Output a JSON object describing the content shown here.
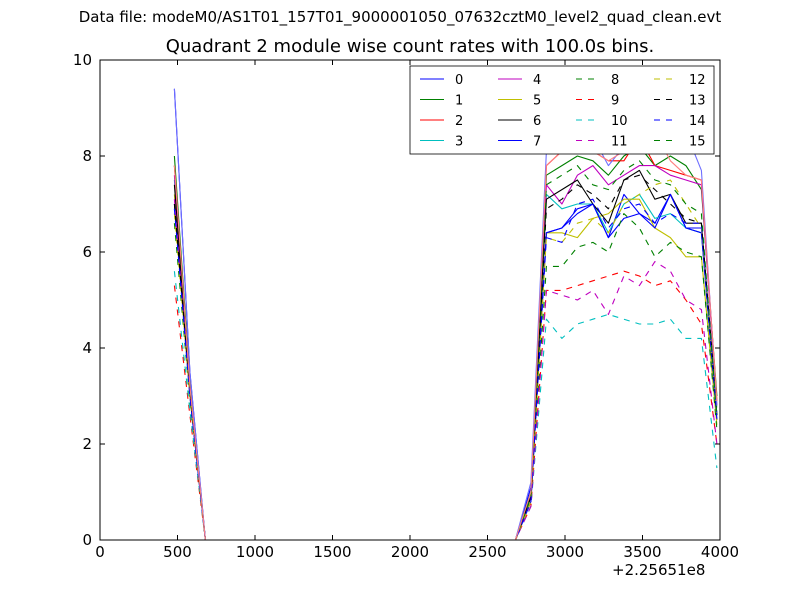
{
  "suptitle": "Data file: modeM0/AS1T01_157T01_9000001050_07632cztM0_level2_quad_clean.evt",
  "chart_data": {
    "type": "line",
    "title": "Quadrant 2 module wise count rates with 100.0s bins.",
    "xlabel": "",
    "ylabel": "",
    "x_offset_label": "+2.25651e8",
    "xlim": [
      0,
      4000
    ],
    "ylim": [
      0,
      10
    ],
    "xticks": [
      0,
      500,
      1000,
      1500,
      2000,
      2500,
      3000,
      3500,
      4000
    ],
    "yticks": [
      0,
      2,
      4,
      6,
      8,
      10
    ],
    "grid": false,
    "legend_position": "top-right",
    "legend_columns": 4,
    "x": [
      480,
      580,
      680,
      780,
      880,
      980,
      1080,
      1180,
      1280,
      1380,
      1480,
      1580,
      1680,
      1780,
      1880,
      1980,
      2080,
      2180,
      2280,
      2380,
      2480,
      2580,
      2680,
      2780,
      2880,
      2980,
      3080,
      3180,
      3280,
      3380,
      3480,
      3580,
      3680,
      3780,
      3880,
      3980
    ],
    "series": [
      {
        "name": "0",
        "color": "#0000ff",
        "dash": "solid",
        "values": [
          9.4,
          3.5,
          0,
          0,
          0,
          0,
          0,
          0,
          0,
          0,
          0,
          0,
          0,
          0,
          0,
          0,
          0,
          0,
          0,
          0,
          0,
          0,
          0,
          1.1,
          6.4,
          6.5,
          6.8,
          7.0,
          6.3,
          7.2,
          6.8,
          6.6,
          7.2,
          6.5,
          6.5,
          2.5
        ]
      },
      {
        "name": "1",
        "color": "#008000",
        "dash": "solid",
        "values": [
          8.0,
          3.3,
          0,
          0,
          0,
          0,
          0,
          0,
          0,
          0,
          0,
          0,
          0,
          0,
          0,
          0,
          0,
          0,
          0,
          0,
          0,
          0,
          0,
          1.0,
          7.6,
          7.8,
          8.0,
          7.9,
          7.6,
          8.0,
          8.2,
          7.8,
          8.0,
          7.8,
          7.3,
          3.0
        ]
      },
      {
        "name": "2",
        "color": "#ff0000",
        "dash": "solid",
        "values": [
          7.8,
          3.2,
          0,
          0,
          0,
          0,
          0,
          0,
          0,
          0,
          0,
          0,
          0,
          0,
          0,
          0,
          0,
          0,
          0,
          0,
          0,
          0,
          0,
          0.9,
          7.8,
          8.1,
          8.2,
          8.1,
          7.9,
          7.9,
          8.4,
          7.8,
          7.7,
          7.6,
          7.5,
          2.9
        ]
      },
      {
        "name": "3",
        "color": "#00bfbf",
        "dash": "solid",
        "values": [
          7.5,
          3.1,
          0,
          0,
          0,
          0,
          0,
          0,
          0,
          0,
          0,
          0,
          0,
          0,
          0,
          0,
          0,
          0,
          0,
          0,
          0,
          0,
          0,
          0.9,
          7.2,
          6.9,
          7.0,
          7.0,
          6.4,
          7.0,
          7.2,
          6.7,
          6.8,
          6.5,
          6.4,
          2.6
        ]
      },
      {
        "name": "4",
        "color": "#bf00bf",
        "dash": "solid",
        "values": [
          7.6,
          3.2,
          0,
          0,
          0,
          0,
          0,
          0,
          0,
          0,
          0,
          0,
          0,
          0,
          0,
          0,
          0,
          0,
          0,
          0,
          0,
          0,
          0,
          0.9,
          7.4,
          7.0,
          7.6,
          7.8,
          7.4,
          7.6,
          7.8,
          7.8,
          7.6,
          7.5,
          7.4,
          2.8
        ]
      },
      {
        "name": "5",
        "color": "#bfbf00",
        "dash": "solid",
        "values": [
          7.2,
          3.0,
          0,
          0,
          0,
          0,
          0,
          0,
          0,
          0,
          0,
          0,
          0,
          0,
          0,
          0,
          0,
          0,
          0,
          0,
          0,
          0,
          0,
          0.8,
          6.4,
          6.4,
          6.3,
          6.7,
          6.8,
          7.1,
          7.1,
          6.5,
          6.3,
          5.9,
          5.9,
          2.4
        ]
      },
      {
        "name": "6",
        "color": "#000000",
        "dash": "solid",
        "values": [
          7.4,
          3.1,
          0,
          0,
          0,
          0,
          0,
          0,
          0,
          0,
          0,
          0,
          0,
          0,
          0,
          0,
          0,
          0,
          0,
          0,
          0,
          0,
          0,
          0.9,
          7.1,
          7.3,
          7.5,
          7.0,
          6.6,
          7.5,
          7.7,
          7.1,
          7.2,
          6.6,
          6.6,
          2.6
        ]
      },
      {
        "name": "7",
        "color": "#0000ff",
        "dash": "solid",
        "values": [
          7.0,
          3.0,
          0,
          0,
          0,
          0,
          0,
          0,
          0,
          0,
          0,
          0,
          0,
          0,
          0,
          0,
          0,
          0,
          0,
          0,
          0,
          0,
          0,
          0.8,
          6.4,
          6.5,
          6.9,
          7.0,
          6.3,
          6.7,
          6.8,
          6.5,
          7.2,
          6.5,
          6.4,
          2.5
        ]
      },
      {
        "name": "8",
        "color": "#008000",
        "dash": "dashed",
        "values": [
          6.6,
          2.9,
          0,
          0,
          0,
          0,
          0,
          0,
          0,
          0,
          0,
          0,
          0,
          0,
          0,
          0,
          0,
          0,
          0,
          0,
          0,
          0,
          0,
          0.8,
          5.7,
          5.7,
          6.1,
          6.2,
          6.0,
          6.8,
          6.5,
          5.9,
          6.2,
          6.0,
          5.9,
          2.3
        ]
      },
      {
        "name": "9",
        "color": "#ff0000",
        "dash": "dashed",
        "values": [
          5.3,
          2.6,
          0,
          0,
          0,
          0,
          0,
          0,
          0,
          0,
          0,
          0,
          0,
          0,
          0,
          0,
          0,
          0,
          0,
          0,
          0,
          0,
          0,
          0.7,
          5.2,
          5.2,
          5.3,
          5.4,
          5.5,
          5.6,
          5.5,
          5.3,
          5.4,
          5.0,
          4.5,
          2.0
        ]
      },
      {
        "name": "10",
        "color": "#00bfbf",
        "dash": "dashed",
        "values": [
          5.6,
          2.7,
          0,
          0,
          0,
          0,
          0,
          0,
          0,
          0,
          0,
          0,
          0,
          0,
          0,
          0,
          0,
          0,
          0,
          0,
          0,
          0,
          0,
          0.7,
          4.6,
          4.2,
          4.5,
          4.6,
          4.7,
          4.6,
          4.5,
          4.5,
          4.6,
          4.2,
          4.2,
          1.5
        ]
      },
      {
        "name": "11",
        "color": "#bf00bf",
        "dash": "dashed",
        "values": [
          7.1,
          3.0,
          0,
          0,
          0,
          0,
          0,
          0,
          0,
          0,
          0,
          0,
          0,
          0,
          0,
          0,
          0,
          0,
          0,
          0,
          0,
          0,
          0,
          0.7,
          5.2,
          5.1,
          5.0,
          5.2,
          4.7,
          5.5,
          5.3,
          5.8,
          5.6,
          5.0,
          4.8,
          2.0
        ]
      },
      {
        "name": "12",
        "color": "#bfbf00",
        "dash": "dashed",
        "values": [
          6.8,
          3.0,
          0,
          0,
          0,
          0,
          0,
          0,
          0,
          0,
          0,
          0,
          0,
          0,
          0,
          0,
          0,
          0,
          0,
          0,
          0,
          0,
          0,
          0.8,
          6.3,
          6.2,
          6.6,
          6.7,
          6.4,
          7.0,
          7.2,
          7.4,
          7.5,
          7.0,
          6.5,
          2.5
        ]
      },
      {
        "name": "13",
        "color": "#000000",
        "dash": "dashed",
        "values": [
          7.0,
          3.1,
          0,
          0,
          0,
          0,
          0,
          0,
          0,
          0,
          0,
          0,
          0,
          0,
          0,
          0,
          0,
          0,
          0,
          0,
          0,
          0,
          0,
          0.9,
          6.9,
          7.1,
          7.4,
          7.2,
          6.9,
          7.5,
          7.6,
          7.3,
          7.0,
          6.7,
          6.6,
          2.7
        ]
      },
      {
        "name": "14",
        "color": "#0000ff",
        "dash": "dashed",
        "values": [
          6.9,
          3.0,
          0,
          0,
          0,
          0,
          0,
          0,
          0,
          0,
          0,
          0,
          0,
          0,
          0,
          0,
          0,
          0,
          0,
          0,
          0,
          0,
          0,
          0.8,
          6.3,
          6.2,
          7.0,
          7.1,
          6.5,
          6.9,
          7.0,
          6.6,
          6.8,
          6.6,
          6.6,
          2.6
        ]
      },
      {
        "name": "15",
        "color": "#008000",
        "dash": "dashed",
        "values": [
          7.8,
          3.2,
          0,
          0,
          0,
          0,
          0,
          0,
          0,
          0,
          0,
          0,
          0,
          0,
          0,
          0,
          0,
          0,
          0,
          0,
          0,
          0,
          0,
          0.9,
          7.4,
          7.6,
          7.8,
          7.4,
          7.3,
          7.7,
          7.9,
          7.5,
          7.4,
          7.0,
          6.8,
          2.6
        ]
      },
      {
        "name": "",
        "color": "#6f6fff",
        "dash": "solid",
        "values": [
          9.4,
          3.5,
          0,
          0,
          0,
          0,
          0,
          0,
          0,
          0,
          0,
          0,
          0,
          0,
          0,
          0,
          0,
          0,
          0,
          0,
          0,
          0,
          0,
          1.2,
          8.1,
          8.4,
          8.8,
          8.4,
          7.8,
          8.2,
          8.4,
          8.1,
          8.3,
          8.5,
          7.7,
          2.8
        ]
      },
      {
        "name": "",
        "color": "#ff7f7f",
        "dash": "solid",
        "values": [
          7.8,
          3.2,
          0,
          0,
          0,
          0,
          0,
          0,
          0,
          0,
          0,
          0,
          0,
          0,
          0,
          0,
          0,
          0,
          0,
          0,
          0,
          0,
          0,
          1.0,
          7.8,
          8.1,
          8.2,
          8.1,
          7.9,
          8.1,
          8.4,
          8.5,
          7.9,
          7.6,
          7.5,
          2.9
        ]
      }
    ]
  }
}
